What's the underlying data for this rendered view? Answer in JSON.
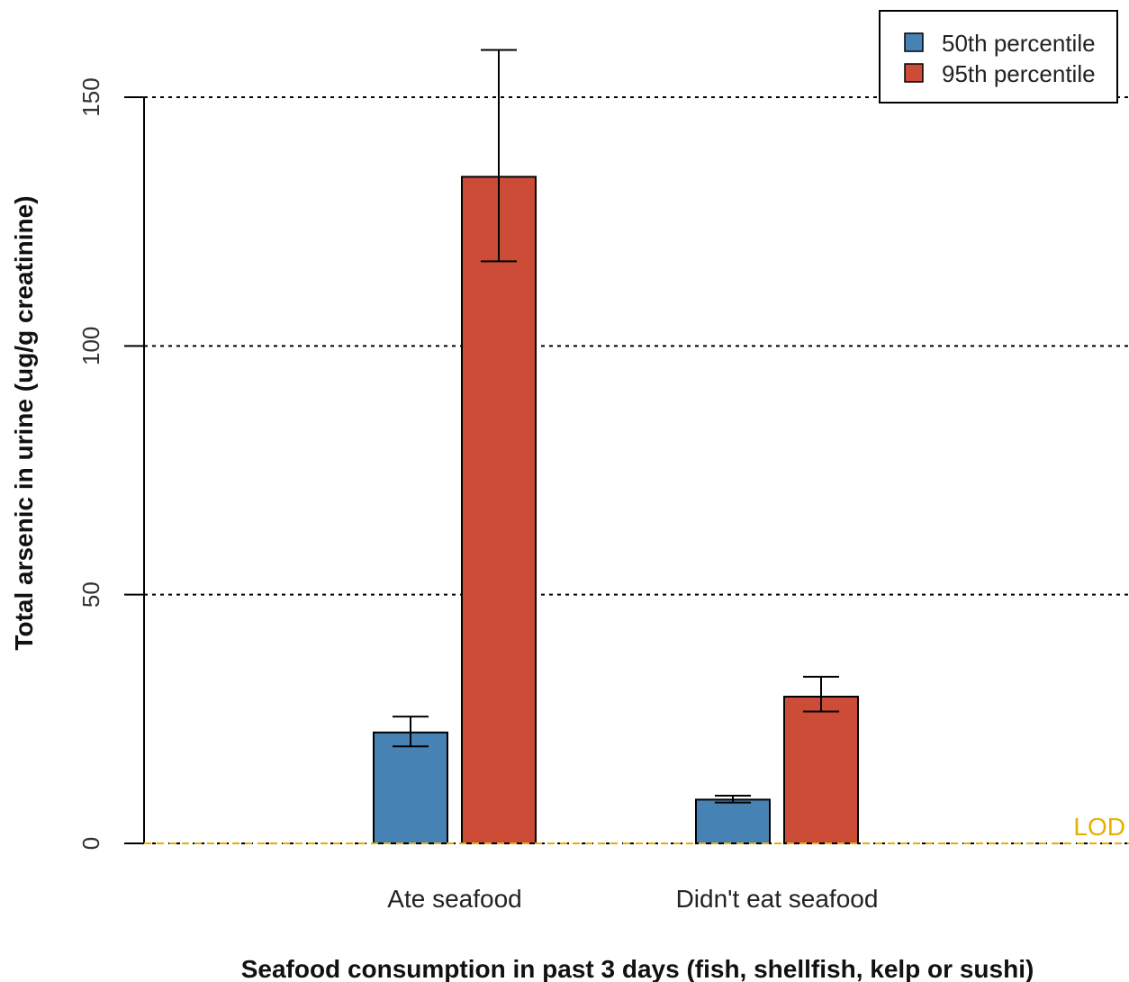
{
  "chart_data": {
    "type": "bar",
    "categories": [
      "Ate seafood",
      "Didn't eat seafood"
    ],
    "series": [
      {
        "name": "50th percentile",
        "color": "#4682b4",
        "values": [
          22.3,
          8.8
        ],
        "error_low": [
          19.5,
          8.2
        ],
        "error_high": [
          25.5,
          9.6
        ]
      },
      {
        "name": "95th percentile",
        "color": "#cd4c37",
        "values": [
          134,
          29.5
        ],
        "error_low": [
          117,
          26.5
        ],
        "error_high": [
          159.5,
          33.5
        ]
      }
    ],
    "xlabel": "Seafood consumption in past 3 days (fish, shellfish, kelp or sushi)",
    "ylabel": "Total arsenic in urine (ug/g creatinine)",
    "ylim": [
      0,
      160
    ],
    "yticks": [
      0,
      50,
      100,
      150
    ],
    "grid": "dotted horizontal",
    "reference_line": {
      "label": "LOD",
      "value": 0,
      "color": "#e6b000"
    },
    "legend": {
      "position": "top-right"
    }
  }
}
